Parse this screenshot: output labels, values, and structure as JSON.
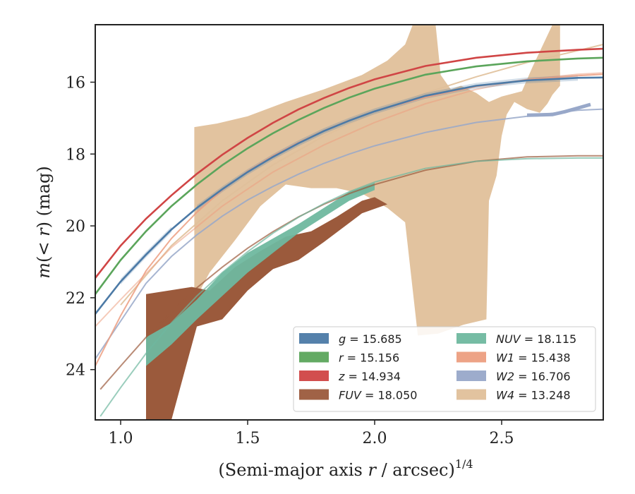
{
  "chart_data": {
    "type": "line",
    "xlabel": "(Semi-major axis r / arcsec)",
    "xlabel_parts": {
      "prefix": "(Semi-major axis ",
      "var": "r",
      "suffix": " / arcsec)",
      "exponent": "1/4"
    },
    "ylabel": "m(< r) (mag)",
    "ylabel_parts": {
      "m": "m",
      "paren_open": "(",
      "lt": "<",
      "r": "r",
      "paren_close": ")",
      "unit": " (mag)"
    },
    "xlim": [
      0.9,
      2.9
    ],
    "ylim": [
      25.4,
      14.4
    ],
    "y_inverted": true,
    "xticks": [
      1.0,
      1.5,
      2.0,
      2.5
    ],
    "xtick_labels": [
      "1.0",
      "1.5",
      "2.0",
      "2.5"
    ],
    "yticks": [
      16,
      18,
      20,
      22,
      24
    ],
    "ytick_labels": [
      "16",
      "18",
      "20",
      "22",
      "24"
    ],
    "grid": false,
    "legend_position": "lower-right",
    "series": [
      {
        "name": "g = 15.685",
        "symbol": "g",
        "value": "15.685",
        "color": "#4c7aa6",
        "kind": "line",
        "x": [
          0.9,
          1.0,
          1.1,
          1.2,
          1.3,
          1.4,
          1.5,
          1.6,
          1.7,
          1.8,
          1.9,
          2.0,
          2.2,
          2.4,
          2.6,
          2.8,
          2.9
        ],
        "y": [
          22.45,
          21.55,
          20.8,
          20.1,
          19.5,
          18.98,
          18.5,
          18.08,
          17.7,
          17.36,
          17.07,
          16.81,
          16.38,
          16.1,
          15.95,
          15.88,
          15.87
        ],
        "band": [
          [
            1.0,
            1.25,
            21.4,
            21.05
          ],
          [
            1.3,
            2.85,
            19.38,
            15.75
          ]
        ]
      },
      {
        "name": "r = 15.156",
        "symbol": "r",
        "value": "15.156",
        "color": "#5ba55b",
        "kind": "line",
        "x": [
          0.9,
          1.0,
          1.1,
          1.2,
          1.3,
          1.4,
          1.5,
          1.6,
          1.7,
          1.8,
          1.9,
          2.0,
          2.2,
          2.4,
          2.6,
          2.8,
          2.9
        ],
        "y": [
          21.9,
          20.95,
          20.15,
          19.45,
          18.85,
          18.31,
          17.84,
          17.42,
          17.05,
          16.72,
          16.43,
          16.18,
          15.79,
          15.56,
          15.42,
          15.34,
          15.32
        ]
      },
      {
        "name": "z = 14.934",
        "symbol": "z",
        "value": "14.934",
        "color": "#d04545",
        "kind": "line",
        "x": [
          0.9,
          1.0,
          1.1,
          1.2,
          1.3,
          1.4,
          1.5,
          1.6,
          1.7,
          1.8,
          1.9,
          2.0,
          2.2,
          2.4,
          2.6,
          2.8,
          2.9
        ],
        "y": [
          21.45,
          20.55,
          19.8,
          19.15,
          18.55,
          18.02,
          17.55,
          17.13,
          16.76,
          16.44,
          16.16,
          15.92,
          15.55,
          15.32,
          15.18,
          15.1,
          15.07
        ]
      },
      {
        "name": "FUV = 18.050",
        "symbol": "FUV",
        "value": "18.050",
        "color": "#9b5a3c",
        "kind": "band",
        "band_upper": [
          [
            1.1,
            21.9
          ],
          [
            1.28,
            21.7
          ],
          [
            1.35,
            21.8
          ],
          [
            1.45,
            21.15
          ],
          [
            1.55,
            20.7
          ],
          [
            1.65,
            20.3
          ],
          [
            1.75,
            20.15
          ],
          [
            1.85,
            19.75
          ],
          [
            1.95,
            19.3
          ],
          [
            2.0,
            19.2
          ],
          [
            2.05,
            19.4
          ]
        ],
        "band_lower": [
          [
            2.05,
            19.4
          ],
          [
            1.95,
            19.65
          ],
          [
            1.8,
            20.45
          ],
          [
            1.7,
            20.95
          ],
          [
            1.6,
            21.2
          ],
          [
            1.5,
            21.8
          ],
          [
            1.4,
            22.6
          ],
          [
            1.3,
            22.8
          ],
          [
            1.2,
            25.4
          ],
          [
            1.1,
            25.4
          ]
        ],
        "fit_x": [
          0.92,
          1.0,
          1.1,
          1.2,
          1.3,
          1.4,
          1.5,
          1.6,
          1.7,
          1.8,
          1.9,
          2.0,
          2.2,
          2.4,
          2.6,
          2.8,
          2.9
        ],
        "fit_y": [
          24.55,
          23.9,
          23.1,
          22.4,
          21.72,
          21.15,
          20.62,
          20.16,
          19.75,
          19.4,
          19.1,
          18.85,
          18.45,
          18.2,
          18.08,
          18.05,
          18.05
        ]
      },
      {
        "name": "NUV = 18.115",
        "symbol": "NUV",
        "value": "18.115",
        "color": "#6fb89f",
        "kind": "band",
        "band_upper": [
          [
            1.1,
            23.1
          ],
          [
            1.2,
            22.7
          ],
          [
            1.3,
            22.05
          ],
          [
            1.4,
            21.3
          ],
          [
            1.5,
            20.75
          ],
          [
            1.6,
            20.35
          ],
          [
            1.7,
            19.95
          ],
          [
            1.8,
            19.5
          ],
          [
            1.9,
            19.05
          ],
          [
            2.0,
            18.8
          ]
        ],
        "band_lower": [
          [
            2.0,
            19.0
          ],
          [
            1.9,
            19.3
          ],
          [
            1.8,
            19.75
          ],
          [
            1.7,
            20.2
          ],
          [
            1.6,
            20.75
          ],
          [
            1.5,
            21.3
          ],
          [
            1.4,
            21.95
          ],
          [
            1.3,
            22.6
          ],
          [
            1.2,
            23.3
          ],
          [
            1.1,
            23.9
          ]
        ],
        "fit_x": [
          0.92,
          1.0,
          1.1,
          1.2,
          1.3,
          1.4,
          1.5,
          1.6,
          1.7,
          1.8,
          1.9,
          2.0,
          2.2,
          2.4,
          2.6,
          2.8,
          2.9
        ],
        "fit_y": [
          25.3,
          24.5,
          23.55,
          22.7,
          21.95,
          21.3,
          20.72,
          20.2,
          19.76,
          19.38,
          19.05,
          18.78,
          18.4,
          18.2,
          18.13,
          18.11,
          18.11
        ]
      },
      {
        "name": "W1 = 15.438",
        "symbol": "W1",
        "value": "15.438",
        "color": "#ec9e80",
        "kind": "line",
        "x": [
          0.9,
          1.0,
          1.1,
          1.2,
          1.3,
          1.4,
          1.5,
          1.6,
          1.7,
          1.8,
          1.9,
          2.0,
          2.2,
          2.4,
          2.6,
          2.8,
          2.9
        ],
        "y": [
          23.9,
          22.5,
          21.25,
          20.35,
          19.62,
          19.0,
          18.48,
          18.05,
          17.68,
          17.35,
          17.06,
          16.81,
          16.42,
          16.12,
          15.93,
          15.82,
          15.78
        ],
        "fit_x": [
          0.9,
          1.0,
          1.2,
          1.4,
          1.6,
          1.8,
          2.0,
          2.2,
          2.4,
          2.6,
          2.8,
          2.9
        ],
        "fit_y": [
          22.8,
          22.05,
          20.6,
          19.45,
          18.5,
          17.75,
          17.12,
          16.6,
          16.2,
          15.92,
          15.78,
          15.74
        ]
      },
      {
        "name": "W2 = 16.706",
        "symbol": "W2",
        "value": "16.706",
        "color": "#98a8c9",
        "kind": "line",
        "x": [
          0.9,
          1.0,
          1.1,
          1.2,
          1.3,
          1.4,
          1.5,
          1.6,
          1.7,
          1.8,
          1.9,
          2.0,
          2.2,
          2.4,
          2.6,
          2.8,
          2.9
        ],
        "y": [
          23.7,
          22.65,
          21.6,
          20.85,
          20.25,
          19.73,
          19.28,
          18.9,
          18.56,
          18.26,
          18.0,
          17.77,
          17.4,
          17.12,
          16.95,
          16.78,
          16.75
        ],
        "thick_x": [
          2.6,
          2.7,
          2.75,
          2.8,
          2.85
        ],
        "thick_y": [
          16.92,
          16.9,
          16.82,
          16.72,
          16.62
        ]
      },
      {
        "name": "W4 = 13.248",
        "symbol": "W4",
        "value": "13.248",
        "color": "#e0c09a",
        "kind": "band",
        "polygon": [
          [
            1.29,
            17.25
          ],
          [
            1.38,
            17.15
          ],
          [
            1.5,
            16.95
          ],
          [
            1.65,
            16.55
          ],
          [
            1.8,
            16.2
          ],
          [
            1.95,
            15.8
          ],
          [
            2.05,
            15.4
          ],
          [
            2.12,
            14.95
          ],
          [
            2.15,
            14.4
          ],
          [
            2.24,
            14.4
          ],
          [
            2.26,
            15.8
          ],
          [
            2.3,
            16.2
          ],
          [
            2.34,
            16.1
          ],
          [
            2.4,
            16.3
          ],
          [
            2.45,
            16.55
          ],
          [
            2.5,
            16.4
          ],
          [
            2.58,
            16.25
          ],
          [
            2.62,
            15.6
          ],
          [
            2.7,
            14.4
          ],
          [
            2.73,
            14.4
          ],
          [
            2.73,
            16.1
          ],
          [
            2.7,
            16.35
          ],
          [
            2.68,
            16.6
          ],
          [
            2.65,
            16.85
          ],
          [
            2.6,
            16.75
          ],
          [
            2.55,
            16.55
          ],
          [
            2.52,
            16.9
          ],
          [
            2.5,
            17.5
          ],
          [
            2.48,
            18.6
          ],
          [
            2.45,
            19.3
          ],
          [
            2.44,
            22.6
          ],
          [
            2.35,
            22.75
          ],
          [
            2.25,
            23.0
          ],
          [
            2.17,
            23.05
          ],
          [
            2.12,
            19.9
          ],
          [
            2.05,
            19.5
          ],
          [
            1.95,
            19.1
          ],
          [
            1.85,
            18.95
          ],
          [
            1.75,
            18.95
          ],
          [
            1.65,
            18.85
          ],
          [
            1.55,
            19.45
          ],
          [
            1.45,
            20.4
          ],
          [
            1.35,
            21.3
          ],
          [
            1.29,
            22.1
          ]
        ],
        "fit_x": [
          1.0,
          1.2,
          1.4,
          1.6,
          1.8,
          2.0,
          2.2,
          2.4,
          2.6,
          2.8,
          2.9
        ],
        "fit_y": [
          22.2,
          20.55,
          19.3,
          18.3,
          17.5,
          16.85,
          16.3,
          15.85,
          15.45,
          15.12,
          14.95
        ]
      }
    ]
  }
}
